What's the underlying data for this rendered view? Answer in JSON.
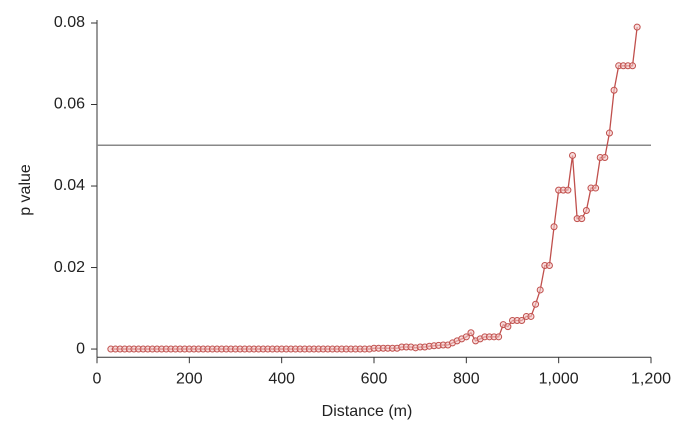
{
  "chart_data": {
    "type": "line",
    "x_label": "Distance (m)",
    "y_label": "p value",
    "x": [
      30,
      40,
      50,
      60,
      70,
      80,
      90,
      100,
      110,
      120,
      130,
      140,
      150,
      160,
      170,
      180,
      190,
      200,
      210,
      220,
      230,
      240,
      250,
      260,
      270,
      280,
      290,
      300,
      310,
      320,
      330,
      340,
      350,
      360,
      370,
      380,
      390,
      400,
      410,
      420,
      430,
      440,
      450,
      460,
      470,
      480,
      490,
      500,
      510,
      520,
      530,
      540,
      550,
      560,
      570,
      580,
      590,
      600,
      610,
      620,
      630,
      640,
      650,
      660,
      670,
      680,
      690,
      700,
      710,
      720,
      730,
      740,
      750,
      760,
      770,
      780,
      790,
      800,
      810,
      820,
      830,
      840,
      850,
      860,
      870,
      880,
      890,
      900,
      910,
      920,
      930,
      940,
      950,
      960,
      970,
      980,
      990,
      1000,
      1010,
      1020,
      1030,
      1040,
      1050,
      1060,
      1070,
      1080,
      1090,
      1100,
      1110,
      1120,
      1130,
      1140,
      1150,
      1160,
      1170
    ],
    "series": [
      {
        "color": "#c0504d",
        "values": [
          0,
          0,
          0,
          0,
          0,
          0,
          0,
          0,
          0,
          0,
          0,
          0,
          0,
          0,
          0,
          0,
          0,
          0,
          0,
          0,
          0,
          0,
          0,
          0,
          0,
          0,
          0,
          0,
          0,
          0,
          0,
          0,
          0,
          0,
          0,
          0,
          0,
          0,
          0,
          0,
          0,
          0,
          0,
          0,
          0,
          0,
          0,
          0,
          0,
          0,
          0,
          0,
          0,
          0,
          0,
          0,
          0,
          0.0002,
          0.0002,
          0.0002,
          0.0002,
          0.0002,
          0.0002,
          0.0005,
          0.0005,
          0.0005,
          0.0003,
          0.0005,
          0.0005,
          0.0007,
          0.0008,
          0.0009,
          0.001,
          0.001,
          0.0015,
          0.002,
          0.0025,
          0.003,
          0.004,
          0.002,
          0.0025,
          0.003,
          0.003,
          0.003,
          0.003,
          0.006,
          0.0055,
          0.007,
          0.007,
          0.007,
          0.008,
          0.008,
          0.011,
          0.0145,
          0.0205,
          0.0205,
          0.03,
          0.039,
          0.039,
          0.039,
          0.0475,
          0.032,
          0.032,
          0.034,
          0.0395,
          0.0395,
          0.047,
          0.047,
          0.053,
          0.0635,
          0.0695,
          0.0695,
          0.0695,
          0.0695,
          0.079
        ]
      }
    ],
    "hline": 0.05,
    "hline_color": "#888888",
    "xlim": [
      0,
      1200
    ],
    "xticks": [
      0,
      200,
      400,
      600,
      800,
      {
        "value": 1000,
        "label": "1,000"
      },
      {
        "value": 1200,
        "label": "1,200"
      }
    ],
    "ylim": [
      -0.002,
      0.08
    ],
    "yticks": [
      0,
      0.02,
      0.04,
      0.06,
      0.08
    ]
  }
}
